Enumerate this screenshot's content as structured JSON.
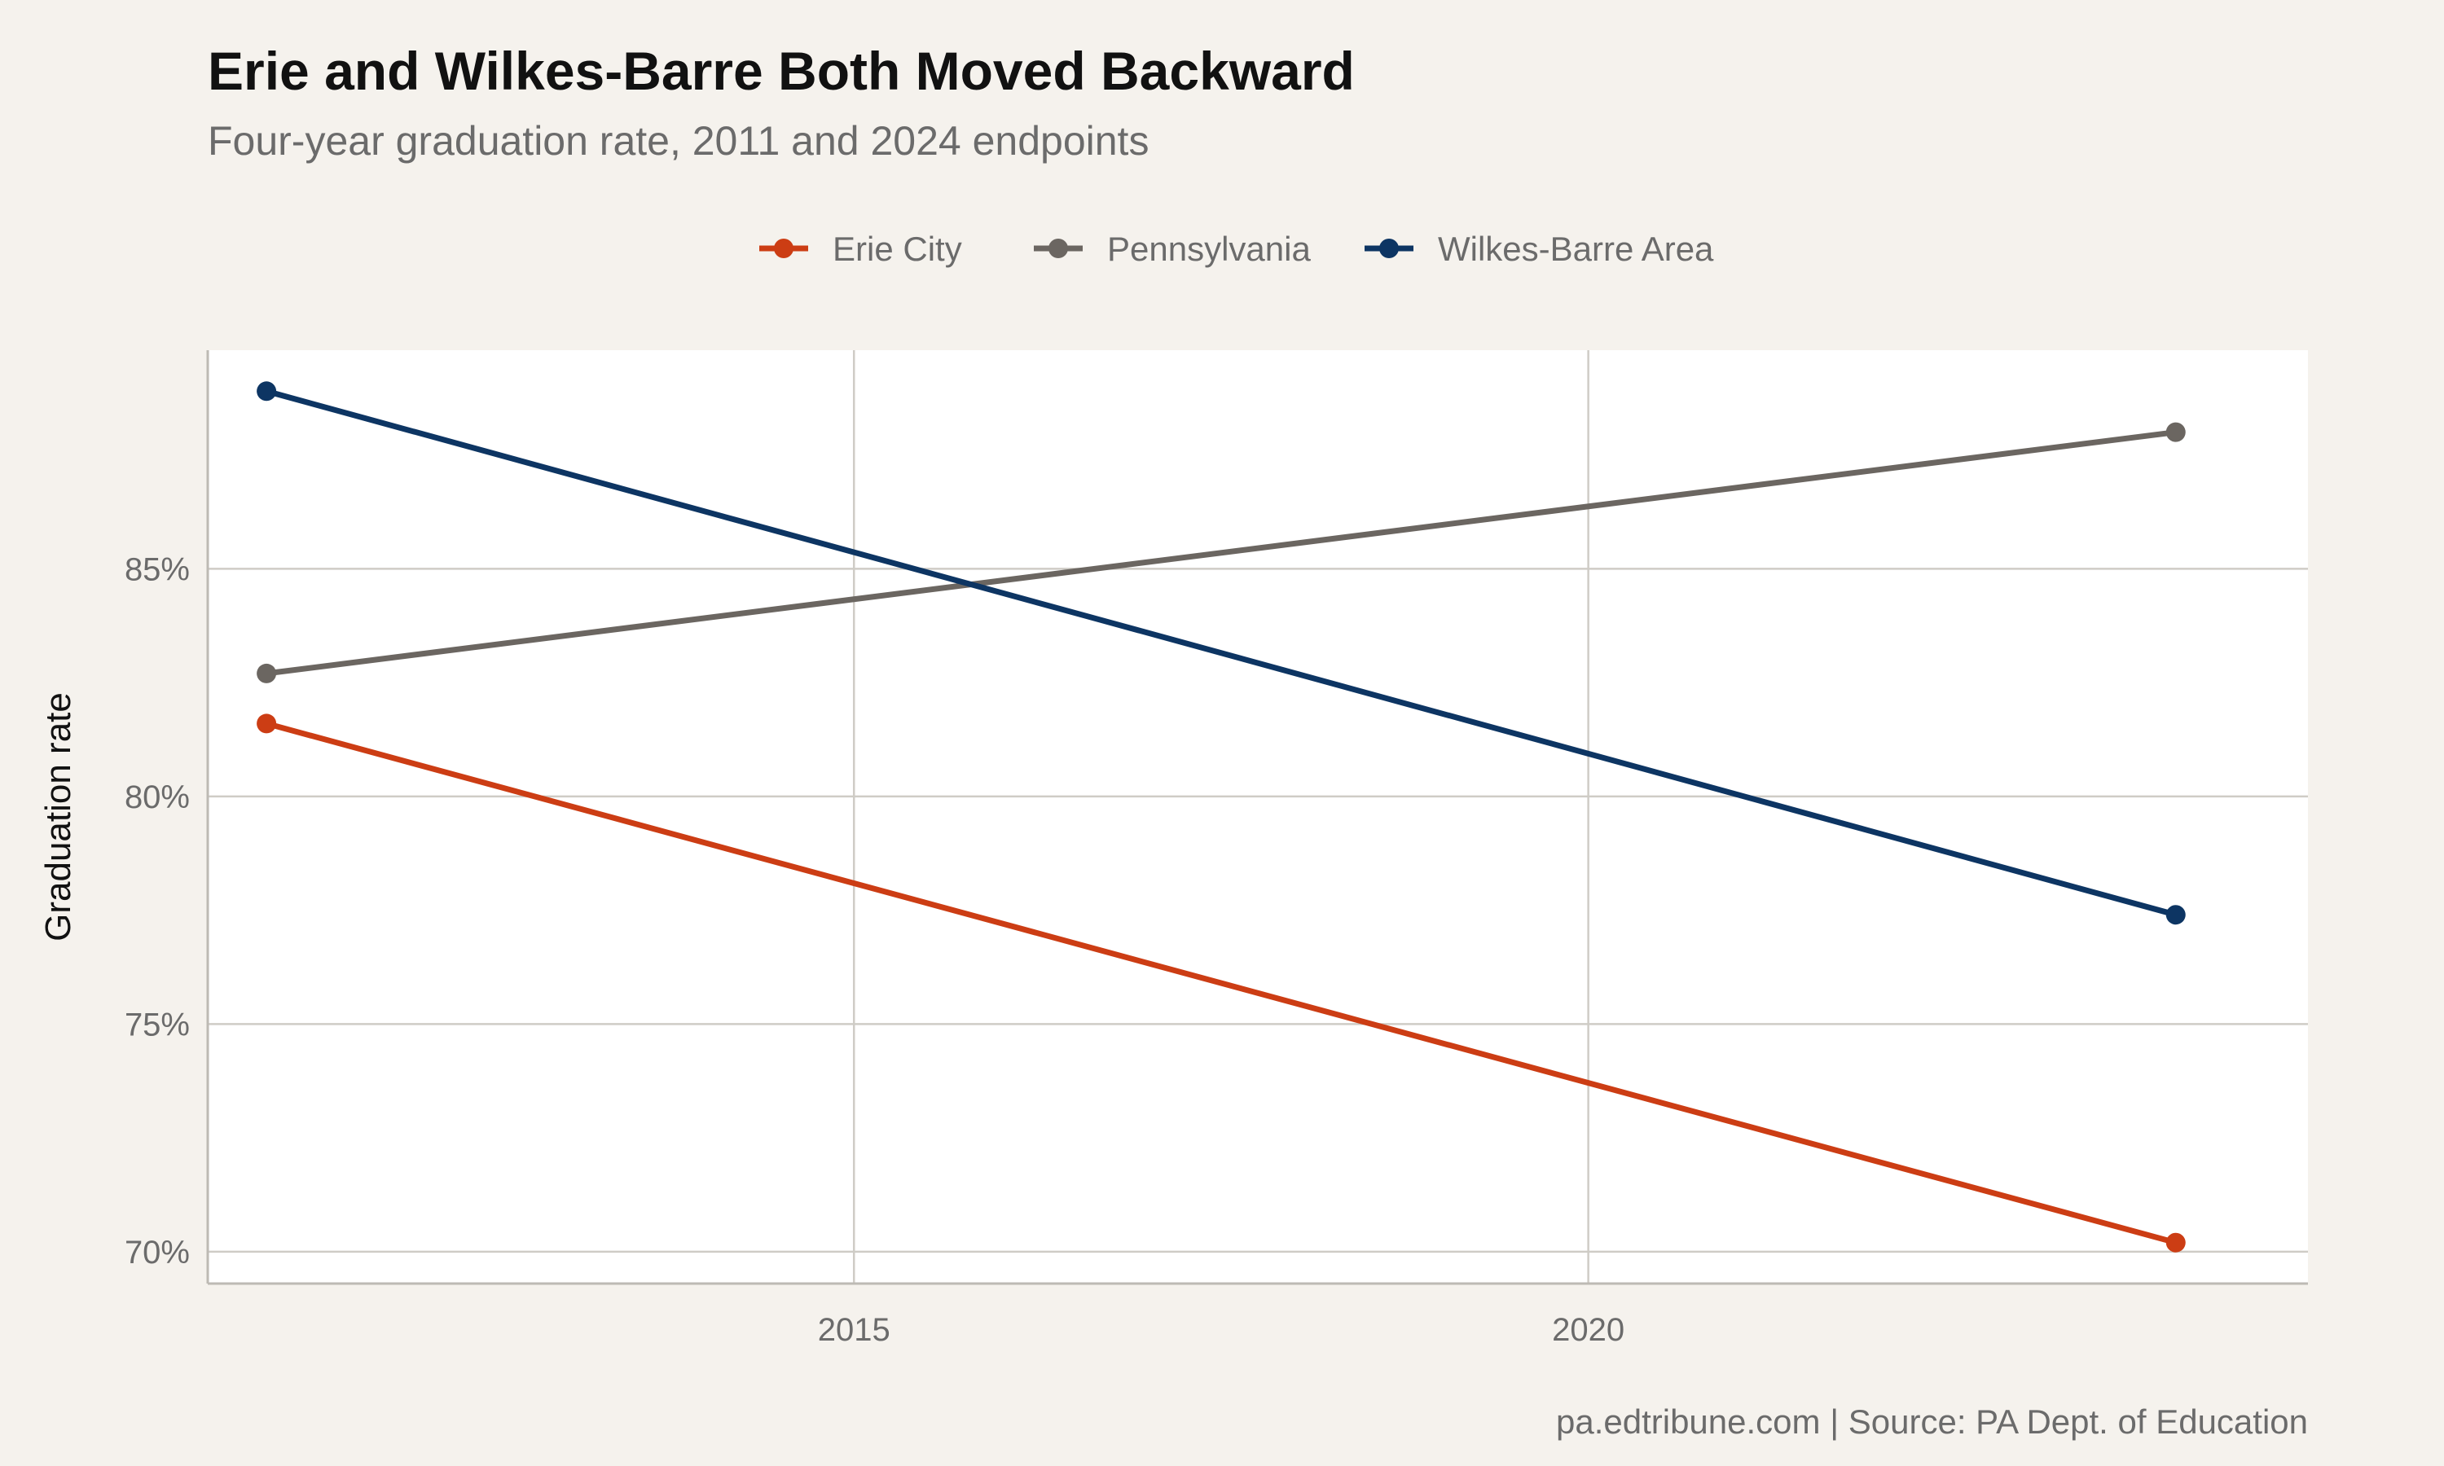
{
  "chart_data": {
    "type": "line",
    "title": "Erie and Wilkes-Barre Both Moved Backward",
    "subtitle": "Four-year graduation rate, 2011 and 2024 endpoints",
    "xlabel": "",
    "ylabel": "Graduation rate",
    "caption": "pa.edtribune.com | Source: PA Dept. of Education",
    "xlim": [
      2010.6,
      2024.9
    ],
    "ylim": [
      69.3,
      89.8
    ],
    "x_ticks": [
      {
        "value": 2015,
        "label": "2015"
      },
      {
        "value": 2020,
        "label": "2020"
      }
    ],
    "y_ticks": [
      {
        "value": 70,
        "label": "70%"
      },
      {
        "value": 75,
        "label": "75%"
      },
      {
        "value": 80,
        "label": "80%"
      },
      {
        "value": 85,
        "label": "85%"
      }
    ],
    "grid": true,
    "legend_position": "top",
    "series": [
      {
        "name": "Erie City",
        "color": "#cc3d14",
        "x": [
          2011,
          2024
        ],
        "y": [
          81.6,
          70.2
        ]
      },
      {
        "name": "Pennsylvania",
        "color": "#6b6661",
        "x": [
          2011,
          2024
        ],
        "y": [
          82.7,
          88.0
        ]
      },
      {
        "name": "Wilkes-Barre Area",
        "color": "#0d3563",
        "x": [
          2011,
          2024
        ],
        "y": [
          88.9,
          77.4
        ]
      }
    ]
  }
}
